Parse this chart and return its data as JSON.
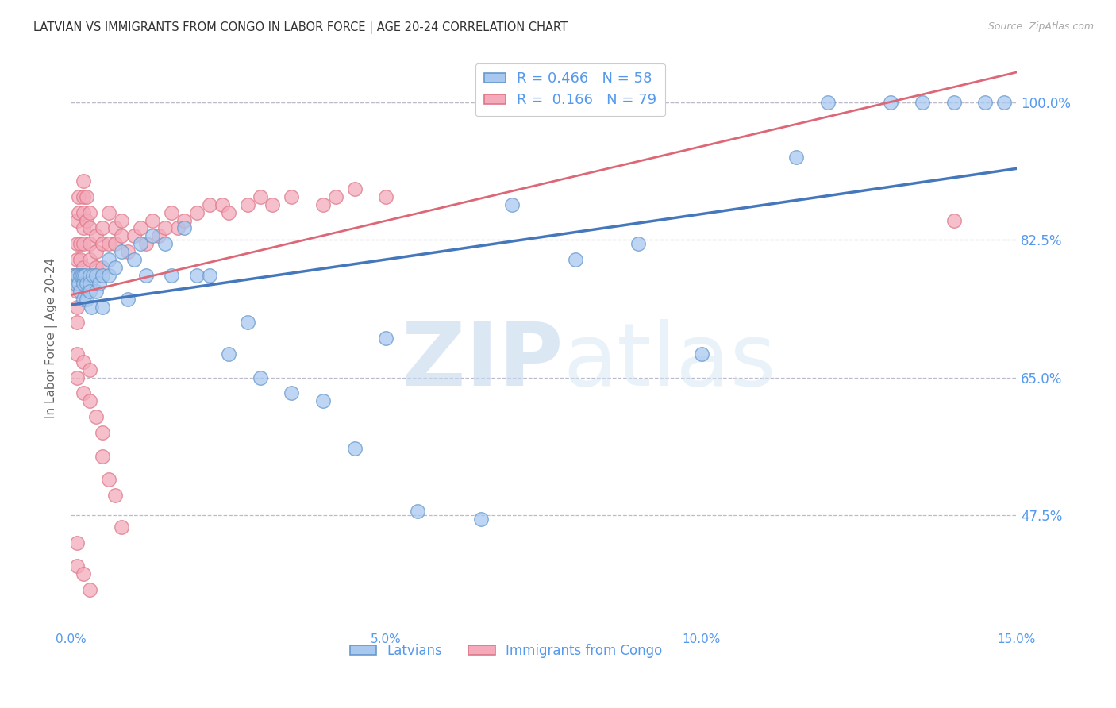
{
  "title": "LATVIAN VS IMMIGRANTS FROM CONGO IN LABOR FORCE | AGE 20-24 CORRELATION CHART",
  "source": "Source: ZipAtlas.com",
  "ylabel": "In Labor Force | Age 20-24",
  "xlim": [
    0.0,
    0.15
  ],
  "ylim": [
    0.33,
    1.07
  ],
  "yticks": [
    0.475,
    0.65,
    0.825,
    1.0
  ],
  "ytick_labels": [
    "47.5%",
    "65.0%",
    "82.5%",
    "100.0%"
  ],
  "xticks": [
    0.0,
    0.05,
    0.1,
    0.15
  ],
  "xtick_labels": [
    "0.0%",
    "5.0%",
    "10.0%",
    "15.0%"
  ],
  "latvian_fill": "#A8C8F0",
  "latvian_edge": "#6699CC",
  "congo_fill": "#F4AABB",
  "congo_edge": "#DD7788",
  "latvian_line_color": "#4477BB",
  "congo_line_color": "#DD6677",
  "legend_latvian_label": "Latvians",
  "legend_congo_label": "Immigrants from Congo",
  "R_latvian": 0.466,
  "N_latvian": 58,
  "R_congo": 0.166,
  "N_congo": 79,
  "watermark_zip": "ZIP",
  "watermark_atlas": "atlas",
  "background_color": "#ffffff",
  "grid_color": "#BBBBCC",
  "tick_color": "#5599EE",
  "latvian_x": [
    0.0005,
    0.0007,
    0.001,
    0.001,
    0.0012,
    0.0015,
    0.0015,
    0.0018,
    0.002,
    0.002,
    0.002,
    0.0022,
    0.0025,
    0.0025,
    0.003,
    0.003,
    0.003,
    0.0032,
    0.0035,
    0.004,
    0.004,
    0.0045,
    0.005,
    0.005,
    0.006,
    0.006,
    0.007,
    0.008,
    0.009,
    0.01,
    0.011,
    0.012,
    0.013,
    0.015,
    0.016,
    0.018,
    0.02,
    0.022,
    0.025,
    0.028,
    0.03,
    0.035,
    0.04,
    0.045,
    0.05,
    0.055,
    0.065,
    0.07,
    0.08,
    0.09,
    0.1,
    0.115,
    0.12,
    0.13,
    0.135,
    0.14,
    0.145,
    0.148
  ],
  "latvian_y": [
    0.78,
    0.77,
    0.78,
    0.78,
    0.77,
    0.78,
    0.76,
    0.78,
    0.78,
    0.77,
    0.75,
    0.78,
    0.77,
    0.75,
    0.78,
    0.77,
    0.76,
    0.74,
    0.78,
    0.78,
    0.76,
    0.77,
    0.78,
    0.74,
    0.8,
    0.78,
    0.79,
    0.81,
    0.75,
    0.8,
    0.82,
    0.78,
    0.83,
    0.82,
    0.78,
    0.84,
    0.78,
    0.78,
    0.68,
    0.72,
    0.65,
    0.63,
    0.62,
    0.56,
    0.7,
    0.48,
    0.47,
    0.87,
    0.8,
    0.82,
    0.68,
    0.93,
    1.0,
    1.0,
    1.0,
    1.0,
    1.0,
    1.0
  ],
  "congo_x": [
    0.0003,
    0.0005,
    0.0007,
    0.001,
    0.001,
    0.001,
    0.001,
    0.001,
    0.001,
    0.001,
    0.001,
    0.001,
    0.0012,
    0.0012,
    0.0015,
    0.0015,
    0.002,
    0.002,
    0.002,
    0.002,
    0.002,
    0.002,
    0.0025,
    0.0025,
    0.003,
    0.003,
    0.003,
    0.003,
    0.004,
    0.004,
    0.004,
    0.005,
    0.005,
    0.005,
    0.006,
    0.006,
    0.007,
    0.007,
    0.008,
    0.008,
    0.009,
    0.01,
    0.011,
    0.012,
    0.013,
    0.014,
    0.015,
    0.016,
    0.017,
    0.018,
    0.02,
    0.022,
    0.024,
    0.025,
    0.028,
    0.03,
    0.032,
    0.035,
    0.04,
    0.042,
    0.045,
    0.05,
    0.001,
    0.001,
    0.002,
    0.002,
    0.003,
    0.003,
    0.004,
    0.005,
    0.005,
    0.006,
    0.007,
    0.008,
    0.001,
    0.001,
    0.002,
    0.003,
    0.14
  ],
  "congo_y": [
    0.78,
    0.78,
    0.78,
    0.85,
    0.82,
    0.8,
    0.78,
    0.78,
    0.78,
    0.76,
    0.74,
    0.72,
    0.88,
    0.86,
    0.82,
    0.8,
    0.9,
    0.88,
    0.86,
    0.84,
    0.82,
    0.79,
    0.88,
    0.85,
    0.86,
    0.84,
    0.82,
    0.8,
    0.83,
    0.81,
    0.79,
    0.84,
    0.82,
    0.79,
    0.86,
    0.82,
    0.84,
    0.82,
    0.85,
    0.83,
    0.81,
    0.83,
    0.84,
    0.82,
    0.85,
    0.83,
    0.84,
    0.86,
    0.84,
    0.85,
    0.86,
    0.87,
    0.87,
    0.86,
    0.87,
    0.88,
    0.87,
    0.88,
    0.87,
    0.88,
    0.89,
    0.88,
    0.68,
    0.65,
    0.67,
    0.63,
    0.66,
    0.62,
    0.6,
    0.58,
    0.55,
    0.52,
    0.5,
    0.46,
    0.44,
    0.41,
    0.4,
    0.38,
    0.85
  ]
}
